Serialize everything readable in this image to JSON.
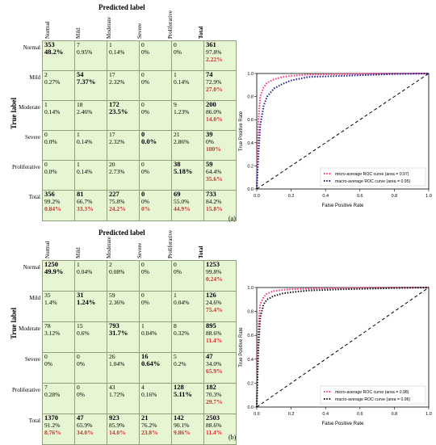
{
  "figures": [
    {
      "id": "a",
      "caption": "(a)",
      "predicted_label": "Predicted label",
      "true_label": "True label",
      "col_labels": [
        "Normal",
        "Mild",
        "Moderate",
        "Severe",
        "Proliferative",
        "Total"
      ],
      "row_labels": [
        "Normal",
        "Mild",
        "Moderate",
        "Severe",
        "Proliferative",
        "Total"
      ],
      "rows": [
        [
          {
            "n": "353",
            "p": "48.2%",
            "bold": true
          },
          {
            "n": "7",
            "p": "0.95%"
          },
          {
            "n": "1",
            "p": "0.14%"
          },
          {
            "n": "0",
            "p": "0%"
          },
          {
            "n": "0",
            "p": "0%"
          },
          {
            "n": "361",
            "p": "97.8%",
            "r": "2.22%",
            "total": true
          }
        ],
        [
          {
            "n": "2",
            "p": "0.27%"
          },
          {
            "n": "54",
            "p": "7.37%",
            "bold": true
          },
          {
            "n": "17",
            "p": "2.32%"
          },
          {
            "n": "0",
            "p": "0%"
          },
          {
            "n": "1",
            "p": "0.14%"
          },
          {
            "n": "74",
            "p": "72.9%",
            "r": "27.0%",
            "total": true
          }
        ],
        [
          {
            "n": "1",
            "p": "0.14%"
          },
          {
            "n": "18",
            "p": "2.46%"
          },
          {
            "n": "172",
            "p": "23.5%",
            "bold": true
          },
          {
            "n": "0",
            "p": "0%"
          },
          {
            "n": "9",
            "p": "1.23%"
          },
          {
            "n": "200",
            "p": "86.0%",
            "r": "14.0%",
            "total": true
          }
        ],
        [
          {
            "n": "0",
            "p": "0.0%"
          },
          {
            "n": "1",
            "p": "0.14%"
          },
          {
            "n": "17",
            "p": "2.32%"
          },
          {
            "n": "0",
            "p": "0.0%",
            "bold": true
          },
          {
            "n": "21",
            "p": "2.86%"
          },
          {
            "n": "39",
            "p": "0%",
            "r": "100%",
            "total": true
          }
        ],
        [
          {
            "n": "0",
            "p": "0.0%"
          },
          {
            "n": "1",
            "p": "0.14%"
          },
          {
            "n": "20",
            "p": "2.73%"
          },
          {
            "n": "0",
            "p": "0%"
          },
          {
            "n": "38",
            "p": "5.18%",
            "bold": true
          },
          {
            "n": "59",
            "p": "64.4%",
            "r": "35.6%",
            "total": true
          }
        ],
        [
          {
            "n": "356",
            "p": "99.2%",
            "r": "0.84%",
            "total": true
          },
          {
            "n": "81",
            "p": "66.7%",
            "r": "33.3%",
            "total": true
          },
          {
            "n": "227",
            "p": "75.8%",
            "r": "24.2%",
            "total": true
          },
          {
            "n": "0",
            "p": "0%",
            "r": "0%",
            "total": true
          },
          {
            "n": "69",
            "p": "55.0%",
            "r": "44.9%",
            "total": true
          },
          {
            "n": "733",
            "p": "84.2%",
            "r": "15.8%",
            "total": true
          }
        ]
      ],
      "roc": {
        "xlabel": "False Positive Rate",
        "ylabel": "True Positive Rate",
        "xticks": [
          "0.0",
          "0.2",
          "0.4",
          "0.6",
          "0.8",
          "1.0"
        ],
        "yticks": [
          "0.0",
          "0.2",
          "0.4",
          "0.6",
          "0.8",
          "1.0"
        ],
        "legend": [
          "micro-average ROC curve (area = 0.97)",
          "macro-average ROC curve (area = 0.95)"
        ]
      }
    },
    {
      "id": "b",
      "caption": "(b)",
      "predicted_label": "Predicted label",
      "true_label": "True label",
      "col_labels": [
        "Normal",
        "Mild",
        "Moderate",
        "Severe",
        "Proliferative",
        "Total"
      ],
      "row_labels": [
        "Normal",
        "Mild",
        "Moderate",
        "Severe",
        "Proliferative",
        "Total"
      ],
      "rows": [
        [
          {
            "n": "1250",
            "p": "49.9%",
            "bold": true
          },
          {
            "n": "1",
            "p": "0.04%"
          },
          {
            "n": "2",
            "p": "0.08%"
          },
          {
            "n": "0",
            "p": "0%"
          },
          {
            "n": "0",
            "p": "0%"
          },
          {
            "n": "1253",
            "p": "99.8%",
            "r": "0.24%",
            "total": true
          }
        ],
        [
          {
            "n": "35",
            "p": "1.4%"
          },
          {
            "n": "31",
            "p": "1.24%",
            "bold": true
          },
          {
            "n": "59",
            "p": "2.36%"
          },
          {
            "n": "0",
            "p": "0%"
          },
          {
            "n": "1",
            "p": "0.04%"
          },
          {
            "n": "126",
            "p": "24.6%",
            "r": "75.4%",
            "total": true
          }
        ],
        [
          {
            "n": "78",
            "p": "3.12%"
          },
          {
            "n": "15",
            "p": "0.6%"
          },
          {
            "n": "793",
            "p": "31.7%",
            "bold": true
          },
          {
            "n": "1",
            "p": "0.04%"
          },
          {
            "n": "8",
            "p": "0.32%"
          },
          {
            "n": "895",
            "p": "88.6%",
            "r": "11.4%",
            "total": true
          }
        ],
        [
          {
            "n": "0",
            "p": "0%"
          },
          {
            "n": "0",
            "p": "0%"
          },
          {
            "n": "26",
            "p": "1.04%"
          },
          {
            "n": "16",
            "p": "0.64%",
            "bold": true
          },
          {
            "n": "5",
            "p": "0.2%"
          },
          {
            "n": "47",
            "p": "34.0%",
            "r": "65.9%",
            "total": true
          }
        ],
        [
          {
            "n": "7",
            "p": "0.28%"
          },
          {
            "n": "0",
            "p": "0%"
          },
          {
            "n": "43",
            "p": "1.72%"
          },
          {
            "n": "4",
            "p": "0.16%"
          },
          {
            "n": "128",
            "p": "5.11%",
            "bold": true
          },
          {
            "n": "182",
            "p": "70.3%",
            "r": "29.7%",
            "total": true
          }
        ],
        [
          {
            "n": "1370",
            "p": "91.2%",
            "r": "8.76%",
            "total": true
          },
          {
            "n": "47",
            "p": "65.9%",
            "r": "34.0%",
            "total": true
          },
          {
            "n": "923",
            "p": "85.9%",
            "r": "14.0%",
            "total": true
          },
          {
            "n": "21",
            "p": "76.2%",
            "r": "23.8%",
            "total": true
          },
          {
            "n": "142",
            "p": "90.1%",
            "r": "9.86%",
            "total": true
          },
          {
            "n": "2503",
            "p": "88.6%",
            "r": "11.4%",
            "total": true
          }
        ]
      ],
      "roc": {
        "xlabel": "False Positive Rate",
        "ylabel": "True Positive Rate",
        "xticks": [
          "0.0",
          "0.2",
          "0.4",
          "0.6",
          "0.8",
          "1.0"
        ],
        "yticks": [
          "0.0",
          "0.2",
          "0.4",
          "0.6",
          "0.8",
          "1.0"
        ],
        "legend": [
          "micro-average ROC curve (area = 0.98)",
          "macro-average ROC curve (area = 0.96)"
        ]
      }
    }
  ],
  "chart_data": [
    {
      "type": "table",
      "title": "Predicted label",
      "ylabel": "True label",
      "columns": [
        "Normal",
        "Mild",
        "Moderate",
        "Severe",
        "Proliferative"
      ],
      "rows_labels": [
        "Normal",
        "Mild",
        "Moderate",
        "Severe",
        "Proliferative"
      ],
      "values": [
        [
          353,
          7,
          1,
          0,
          0
        ],
        [
          2,
          54,
          17,
          0,
          1
        ],
        [
          1,
          18,
          172,
          0,
          9
        ],
        [
          0,
          1,
          17,
          0,
          21
        ],
        [
          0,
          1,
          20,
          0,
          38
        ]
      ],
      "row_totals": [
        361,
        74,
        200,
        39,
        59
      ],
      "col_totals": [
        356,
        81,
        227,
        0,
        69
      ],
      "grand_total": 733
    },
    {
      "type": "line",
      "xlabel": "False Positive Rate",
      "ylabel": "True Positive Rate",
      "xlim": [
        0,
        1
      ],
      "ylim": [
        0,
        1
      ],
      "legend_position": "bottom-right",
      "series": [
        {
          "name": "micro-average ROC curve (area = 0.97)",
          "color": "#ff2d7a",
          "x": [
            0,
            0.01,
            0.02,
            0.04,
            0.06,
            0.1,
            0.15,
            0.2,
            0.3,
            0.5,
            0.8,
            1.0
          ],
          "y": [
            0,
            0.6,
            0.8,
            0.88,
            0.92,
            0.95,
            0.97,
            0.98,
            0.99,
            0.995,
            1.0,
            1.0
          ]
        },
        {
          "name": "macro-average ROC curve (area = 0.95)",
          "color": "#1a1a9c",
          "x": [
            0,
            0.01,
            0.02,
            0.04,
            0.06,
            0.1,
            0.15,
            0.2,
            0.3,
            0.5,
            0.8,
            1.0
          ],
          "y": [
            0,
            0.3,
            0.55,
            0.72,
            0.8,
            0.87,
            0.91,
            0.94,
            0.97,
            0.98,
            0.995,
            1.0
          ]
        },
        {
          "name": "",
          "color": "#000000",
          "x": [
            0,
            1
          ],
          "y": [
            0,
            1
          ]
        }
      ]
    },
    {
      "type": "table",
      "title": "Predicted label",
      "ylabel": "True label",
      "columns": [
        "Normal",
        "Mild",
        "Moderate",
        "Severe",
        "Proliferative"
      ],
      "rows_labels": [
        "Normal",
        "Mild",
        "Moderate",
        "Severe",
        "Proliferative"
      ],
      "values": [
        [
          1250,
          1,
          2,
          0,
          0
        ],
        [
          35,
          31,
          59,
          0,
          1
        ],
        [
          78,
          15,
          793,
          1,
          8
        ],
        [
          0,
          0,
          26,
          16,
          5
        ],
        [
          7,
          0,
          43,
          4,
          128
        ]
      ],
      "row_totals": [
        1253,
        126,
        895,
        47,
        182
      ],
      "col_totals": [
        1370,
        47,
        923,
        21,
        142
      ],
      "grand_total": 2503
    },
    {
      "type": "line",
      "xlabel": "False Positive Rate",
      "ylabel": "True Positive Rate",
      "xlim": [
        0,
        1
      ],
      "ylim": [
        0,
        1
      ],
      "legend_position": "bottom-right",
      "series": [
        {
          "name": "micro-average ROC curve (area = 0.98)",
          "color": "#ff2d7a",
          "x": [
            0,
            0.01,
            0.02,
            0.04,
            0.06,
            0.1,
            0.15,
            0.2,
            0.3,
            0.5,
            0.8,
            1.0
          ],
          "y": [
            0,
            0.7,
            0.86,
            0.92,
            0.95,
            0.97,
            0.98,
            0.985,
            0.99,
            0.995,
            1.0,
            1.0
          ]
        },
        {
          "name": "macro-average ROC curve (area = 0.96)",
          "color": "#111111",
          "x": [
            0,
            0.01,
            0.02,
            0.04,
            0.06,
            0.1,
            0.15,
            0.2,
            0.3,
            0.5,
            0.8,
            1.0
          ],
          "y": [
            0,
            0.5,
            0.75,
            0.86,
            0.9,
            0.93,
            0.95,
            0.96,
            0.975,
            0.985,
            0.995,
            1.0
          ]
        },
        {
          "name": "",
          "color": "#000000",
          "x": [
            0,
            1
          ],
          "y": [
            0,
            1
          ]
        }
      ]
    }
  ]
}
